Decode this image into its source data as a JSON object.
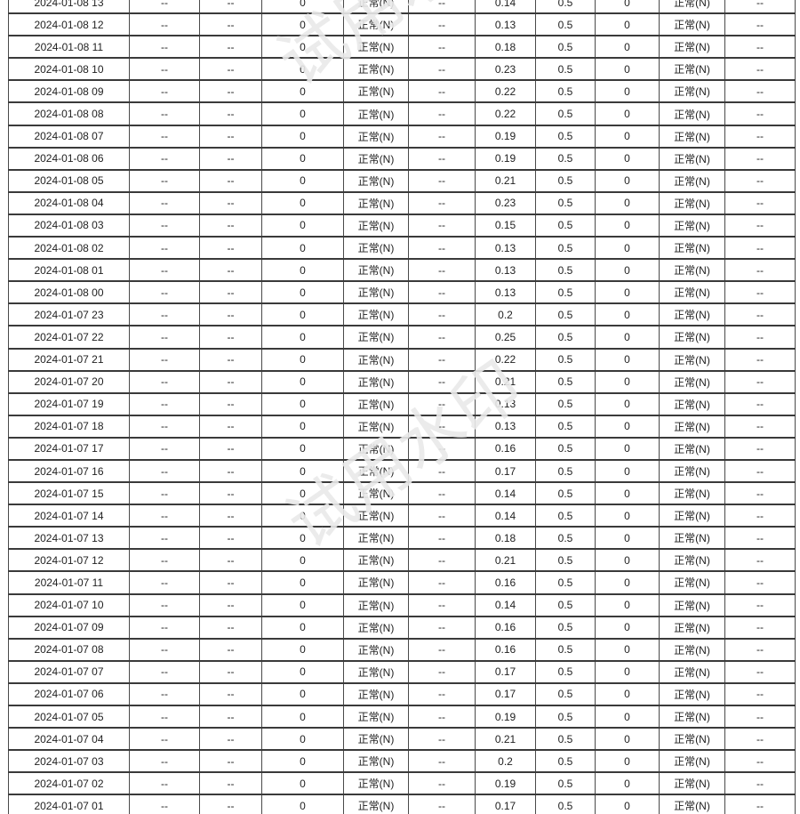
{
  "watermark": {
    "text": "试用水印",
    "color": "#e9e9e9"
  },
  "table": {
    "rows": [
      [
        "2024-01-08 13",
        "--",
        "--",
        "0",
        "正常(N)",
        "--",
        "0.14",
        "0.5",
        "0",
        "正常(N)",
        "--"
      ],
      [
        "2024-01-08 12",
        "--",
        "--",
        "0",
        "正常(N)",
        "--",
        "0.13",
        "0.5",
        "0",
        "正常(N)",
        "--"
      ],
      [
        "2024-01-08 11",
        "--",
        "--",
        "0",
        "正常(N)",
        "--",
        "0.18",
        "0.5",
        "0",
        "正常(N)",
        "--"
      ],
      [
        "2024-01-08 10",
        "--",
        "--",
        "0",
        "正常(N)",
        "--",
        "0.23",
        "0.5",
        "0",
        "正常(N)",
        "--"
      ],
      [
        "2024-01-08 09",
        "--",
        "--",
        "0",
        "正常(N)",
        "--",
        "0.22",
        "0.5",
        "0",
        "正常(N)",
        "--"
      ],
      [
        "2024-01-08 08",
        "--",
        "--",
        "0",
        "正常(N)",
        "--",
        "0.22",
        "0.5",
        "0",
        "正常(N)",
        "--"
      ],
      [
        "2024-01-08 07",
        "--",
        "--",
        "0",
        "正常(N)",
        "--",
        "0.19",
        "0.5",
        "0",
        "正常(N)",
        "--"
      ],
      [
        "2024-01-08 06",
        "--",
        "--",
        "0",
        "正常(N)",
        "--",
        "0.19",
        "0.5",
        "0",
        "正常(N)",
        "--"
      ],
      [
        "2024-01-08 05",
        "--",
        "--",
        "0",
        "正常(N)",
        "--",
        "0.21",
        "0.5",
        "0",
        "正常(N)",
        "--"
      ],
      [
        "2024-01-08 04",
        "--",
        "--",
        "0",
        "正常(N)",
        "--",
        "0.23",
        "0.5",
        "0",
        "正常(N)",
        "--"
      ],
      [
        "2024-01-08 03",
        "--",
        "--",
        "0",
        "正常(N)",
        "--",
        "0.15",
        "0.5",
        "0",
        "正常(N)",
        "--"
      ],
      [
        "2024-01-08 02",
        "--",
        "--",
        "0",
        "正常(N)",
        "--",
        "0.13",
        "0.5",
        "0",
        "正常(N)",
        "--"
      ],
      [
        "2024-01-08 01",
        "--",
        "--",
        "0",
        "正常(N)",
        "--",
        "0.13",
        "0.5",
        "0",
        "正常(N)",
        "--"
      ],
      [
        "2024-01-08 00",
        "--",
        "--",
        "0",
        "正常(N)",
        "--",
        "0.13",
        "0.5",
        "0",
        "正常(N)",
        "--"
      ],
      [
        "2024-01-07 23",
        "--",
        "--",
        "0",
        "正常(N)",
        "--",
        "0.2",
        "0.5",
        "0",
        "正常(N)",
        "--"
      ],
      [
        "2024-01-07 22",
        "--",
        "--",
        "0",
        "正常(N)",
        "--",
        "0.25",
        "0.5",
        "0",
        "正常(N)",
        "--"
      ],
      [
        "2024-01-07 21",
        "--",
        "--",
        "0",
        "正常(N)",
        "--",
        "0.22",
        "0.5",
        "0",
        "正常(N)",
        "--"
      ],
      [
        "2024-01-07 20",
        "--",
        "--",
        "0",
        "正常(N)",
        "--",
        "0.21",
        "0.5",
        "0",
        "正常(N)",
        "--"
      ],
      [
        "2024-01-07 19",
        "--",
        "--",
        "0",
        "正常(N)",
        "--",
        "0.13",
        "0.5",
        "0",
        "正常(N)",
        "--"
      ],
      [
        "2024-01-07 18",
        "--",
        "--",
        "0",
        "正常(N)",
        "--",
        "0.13",
        "0.5",
        "0",
        "正常(N)",
        "--"
      ],
      [
        "2024-01-07 17",
        "--",
        "--",
        "0",
        "正常(N)",
        "--",
        "0.16",
        "0.5",
        "0",
        "正常(N)",
        "--"
      ],
      [
        "2024-01-07 16",
        "--",
        "--",
        "0",
        "正常(N)",
        "--",
        "0.17",
        "0.5",
        "0",
        "正常(N)",
        "--"
      ],
      [
        "2024-01-07 15",
        "--",
        "--",
        "0",
        "正常(N)",
        "--",
        "0.14",
        "0.5",
        "0",
        "正常(N)",
        "--"
      ],
      [
        "2024-01-07 14",
        "--",
        "--",
        "0",
        "正常(N)",
        "--",
        "0.14",
        "0.5",
        "0",
        "正常(N)",
        "--"
      ],
      [
        "2024-01-07 13",
        "--",
        "--",
        "0",
        "正常(N)",
        "--",
        "0.18",
        "0.5",
        "0",
        "正常(N)",
        "--"
      ],
      [
        "2024-01-07 12",
        "--",
        "--",
        "0",
        "正常(N)",
        "--",
        "0.21",
        "0.5",
        "0",
        "正常(N)",
        "--"
      ],
      [
        "2024-01-07 11",
        "--",
        "--",
        "0",
        "正常(N)",
        "--",
        "0.16",
        "0.5",
        "0",
        "正常(N)",
        "--"
      ],
      [
        "2024-01-07 10",
        "--",
        "--",
        "0",
        "正常(N)",
        "--",
        "0.14",
        "0.5",
        "0",
        "正常(N)",
        "--"
      ],
      [
        "2024-01-07 09",
        "--",
        "--",
        "0",
        "正常(N)",
        "--",
        "0.16",
        "0.5",
        "0",
        "正常(N)",
        "--"
      ],
      [
        "2024-01-07 08",
        "--",
        "--",
        "0",
        "正常(N)",
        "--",
        "0.16",
        "0.5",
        "0",
        "正常(N)",
        "--"
      ],
      [
        "2024-01-07 07",
        "--",
        "--",
        "0",
        "正常(N)",
        "--",
        "0.17",
        "0.5",
        "0",
        "正常(N)",
        "--"
      ],
      [
        "2024-01-07 06",
        "--",
        "--",
        "0",
        "正常(N)",
        "--",
        "0.17",
        "0.5",
        "0",
        "正常(N)",
        "--"
      ],
      [
        "2024-01-07 05",
        "--",
        "--",
        "0",
        "正常(N)",
        "--",
        "0.19",
        "0.5",
        "0",
        "正常(N)",
        "--"
      ],
      [
        "2024-01-07 04",
        "--",
        "--",
        "0",
        "正常(N)",
        "--",
        "0.21",
        "0.5",
        "0",
        "正常(N)",
        "--"
      ],
      [
        "2024-01-07 03",
        "--",
        "--",
        "0",
        "正常(N)",
        "--",
        "0.2",
        "0.5",
        "0",
        "正常(N)",
        "--"
      ],
      [
        "2024-01-07 02",
        "--",
        "--",
        "0",
        "正常(N)",
        "--",
        "0.19",
        "0.5",
        "0",
        "正常(N)",
        "--"
      ],
      [
        "2024-01-07 01",
        "--",
        "--",
        "0",
        "正常(N)",
        "--",
        "0.17",
        "0.5",
        "0",
        "正常(N)",
        "--"
      ]
    ]
  }
}
